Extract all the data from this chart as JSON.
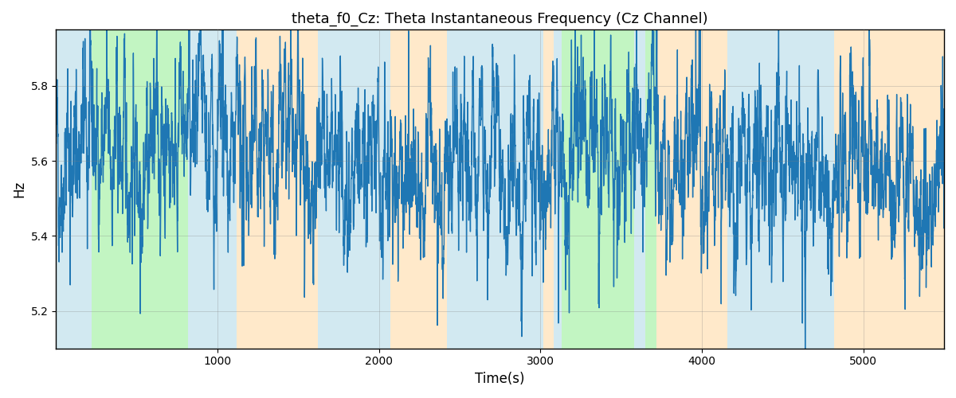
{
  "title": "theta_f0_Cz: Theta Instantaneous Frequency (Cz Channel)",
  "xlabel": "Time(s)",
  "ylabel": "Hz",
  "xlim": [
    0,
    5500
  ],
  "ylim": [
    5.1,
    5.95
  ],
  "yticks": [
    5.2,
    5.4,
    5.6,
    5.8
  ],
  "xticks": [
    1000,
    2000,
    3000,
    4000,
    5000
  ],
  "line_color": "#1f77b4",
  "line_width": 1.0,
  "seed": 42,
  "n_points": 5500,
  "mean_freq": 5.6,
  "bg_regions": [
    {
      "xmin": 0,
      "xmax": 220,
      "color": "#add8e6",
      "alpha": 0.55
    },
    {
      "xmin": 220,
      "xmax": 820,
      "color": "#90ee90",
      "alpha": 0.55
    },
    {
      "xmin": 820,
      "xmax": 1120,
      "color": "#add8e6",
      "alpha": 0.55
    },
    {
      "xmin": 1120,
      "xmax": 1620,
      "color": "#ffd8a0",
      "alpha": 0.55
    },
    {
      "xmin": 1620,
      "xmax": 2070,
      "color": "#add8e6",
      "alpha": 0.55
    },
    {
      "xmin": 2070,
      "xmax": 2420,
      "color": "#ffd8a0",
      "alpha": 0.55
    },
    {
      "xmin": 2420,
      "xmax": 3020,
      "color": "#add8e6",
      "alpha": 0.55
    },
    {
      "xmin": 3020,
      "xmax": 3080,
      "color": "#ffd8a0",
      "alpha": 0.55
    },
    {
      "xmin": 3080,
      "xmax": 3130,
      "color": "#add8e6",
      "alpha": 0.55
    },
    {
      "xmin": 3130,
      "xmax": 3580,
      "color": "#90ee90",
      "alpha": 0.55
    },
    {
      "xmin": 3580,
      "xmax": 3650,
      "color": "#add8e6",
      "alpha": 0.55
    },
    {
      "xmin": 3650,
      "xmax": 3720,
      "color": "#90ee90",
      "alpha": 0.55
    },
    {
      "xmin": 3720,
      "xmax": 4160,
      "color": "#ffd8a0",
      "alpha": 0.55
    },
    {
      "xmin": 4160,
      "xmax": 4820,
      "color": "#add8e6",
      "alpha": 0.55
    },
    {
      "xmin": 4820,
      "xmax": 5500,
      "color": "#ffd8a0",
      "alpha": 0.55
    }
  ],
  "figsize": [
    12.0,
    5.0
  ],
  "dpi": 100
}
